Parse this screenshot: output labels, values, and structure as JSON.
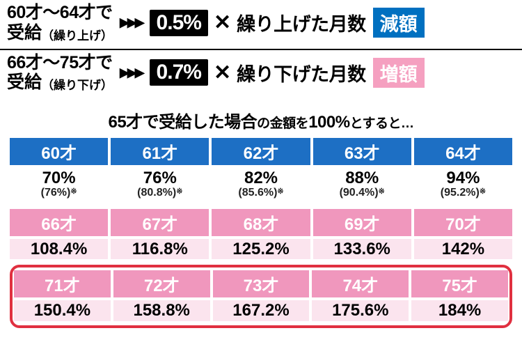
{
  "rule1": {
    "age_range": "60才～64才で",
    "label": "受給",
    "paren": "（繰り上げ）",
    "arrows": "▶▶▶",
    "pct": "0.5%",
    "mult": "✕",
    "text": "繰り上げた月数",
    "tag": "減額"
  },
  "rule2": {
    "age_range": "66才～75才で",
    "label": "受給",
    "paren": "（繰り下げ）",
    "arrows": "▶▶▶",
    "pct": "0.7%",
    "mult": "✕",
    "text": "繰り下げた月数",
    "tag": "増額"
  },
  "caption_a": "65才で受給した場合",
  "caption_b": "の金額を",
  "caption_c": "100%",
  "caption_d": "とすると…",
  "blue": {
    "ages": [
      "60才",
      "61才",
      "62才",
      "63才",
      "64才"
    ],
    "vals": [
      "70%",
      "76%",
      "82%",
      "88%",
      "94%"
    ],
    "subs": [
      "(76%)",
      "(80.8%)",
      "(85.6%)",
      "(90.4%)",
      "(95.2%)"
    ]
  },
  "pink1": {
    "ages": [
      "66才",
      "67才",
      "68才",
      "69才",
      "70才"
    ],
    "vals": [
      "108.4%",
      "116.8%",
      "125.2%",
      "133.6%",
      "142%"
    ]
  },
  "pink2": {
    "ages": [
      "71才",
      "72才",
      "73才",
      "74才",
      "75才"
    ],
    "vals": [
      "150.4%",
      "158.8%",
      "167.2%",
      "175.6%",
      "184%"
    ]
  }
}
